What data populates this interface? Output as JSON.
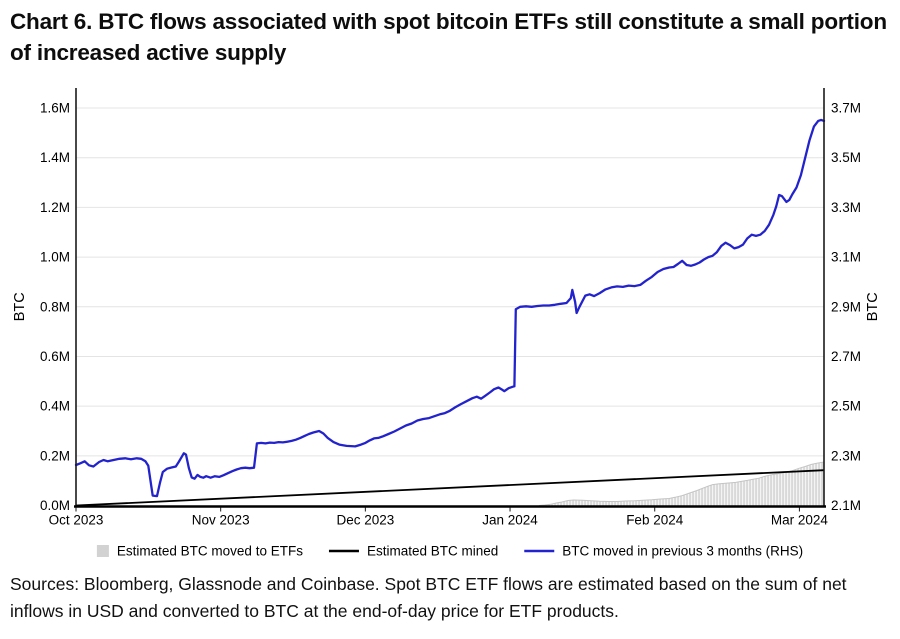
{
  "page": {
    "background": "#ffffff"
  },
  "title": {
    "text": "Chart 6. BTC flows associated with spot bitcoin ETFs still constitute a small portion of increased active supply"
  },
  "sources": {
    "text": "Sources: Bloomberg, Glassnode and Coinbase. Spot BTC ETF flows are estimated based on the sum of net inflows in USD and converted to BTC at the end-of-day price for ETF products."
  },
  "chart_data": {
    "type": "line",
    "grid": true,
    "x_axis": {
      "unit": "months since Oct 1 2023",
      "range": [
        0,
        5.17
      ],
      "ticks": [
        {
          "label": "Oct 2023",
          "value": 0
        },
        {
          "label": "Nov 2023",
          "value": 1
        },
        {
          "label": "Dec 2023",
          "value": 2
        },
        {
          "label": "Jan 2024",
          "value": 3
        },
        {
          "label": "Feb 2024",
          "value": 4
        },
        {
          "label": "Mar 2024",
          "value": 5
        }
      ]
    },
    "left_axis": {
      "title": "BTC",
      "range": [
        0,
        1.6
      ],
      "ticks": [
        {
          "label": "0.0M",
          "value": 0.0
        },
        {
          "label": "0.2M",
          "value": 0.2
        },
        {
          "label": "0.4M",
          "value": 0.4
        },
        {
          "label": "0.6M",
          "value": 0.6
        },
        {
          "label": "0.8M",
          "value": 0.8
        },
        {
          "label": "1.0M",
          "value": 1.0
        },
        {
          "label": "1.2M",
          "value": 1.2
        },
        {
          "label": "1.4M",
          "value": 1.4
        },
        {
          "label": "1.6M",
          "value": 1.6
        }
      ]
    },
    "right_axis": {
      "title": "BTC",
      "range": [
        2.1,
        3.7
      ],
      "ticks": [
        {
          "label": "2.1M",
          "value": 2.1
        },
        {
          "label": "2.3M",
          "value": 2.3
        },
        {
          "label": "2.5M",
          "value": 2.5
        },
        {
          "label": "2.7M",
          "value": 2.7
        },
        {
          "label": "2.9M",
          "value": 2.9
        },
        {
          "label": "3.1M",
          "value": 3.1
        },
        {
          "label": "3.3M",
          "value": 3.3
        },
        {
          "label": "3.5M",
          "value": 3.5
        },
        {
          "label": "3.7M",
          "value": 3.7
        }
      ]
    },
    "colors": {
      "blue": "#2323cd",
      "black": "#000000",
      "gray_fill": "#d9d9d9",
      "gray_edge": "#c4c4c4",
      "grid": "#e4e4e4",
      "spine": "#1a1a1a"
    },
    "legend": [
      {
        "swatch": "square",
        "color": "#d2d2d2",
        "label": "Estimated BTC moved to ETFs"
      },
      {
        "swatch": "line",
        "color": "#000000",
        "label": "Estimated BTC mined"
      },
      {
        "swatch": "line",
        "color": "#2323cd",
        "label": "BTC moved in previous 3 months (RHS)"
      }
    ],
    "series": [
      {
        "name": "Estimated BTC moved to ETFs",
        "type": "area_bars",
        "axis": "left",
        "points": [
          [
            0,
            0
          ],
          [
            3.2,
            0
          ],
          [
            3.24,
            0.002
          ],
          [
            3.28,
            0.005
          ],
          [
            3.32,
            0.01
          ],
          [
            3.36,
            0.014
          ],
          [
            3.4,
            0.02
          ],
          [
            3.44,
            0.022
          ],
          [
            3.5,
            0.021
          ],
          [
            3.56,
            0.019
          ],
          [
            3.62,
            0.017
          ],
          [
            3.68,
            0.016
          ],
          [
            3.74,
            0.016
          ],
          [
            3.8,
            0.018
          ],
          [
            3.86,
            0.019
          ],
          [
            3.92,
            0.021
          ],
          [
            3.98,
            0.023
          ],
          [
            4.04,
            0.026
          ],
          [
            4.1,
            0.028
          ],
          [
            4.14,
            0.033
          ],
          [
            4.19,
            0.04
          ],
          [
            4.24,
            0.05
          ],
          [
            4.29,
            0.06
          ],
          [
            4.33,
            0.069
          ],
          [
            4.37,
            0.078
          ],
          [
            4.4,
            0.084
          ],
          [
            4.44,
            0.087
          ],
          [
            4.48,
            0.089
          ],
          [
            4.52,
            0.091
          ],
          [
            4.56,
            0.093
          ],
          [
            4.6,
            0.097
          ],
          [
            4.64,
            0.101
          ],
          [
            4.68,
            0.106
          ],
          [
            4.72,
            0.11
          ],
          [
            4.76,
            0.117
          ],
          [
            4.81,
            0.124
          ],
          [
            4.86,
            0.129
          ],
          [
            4.91,
            0.134
          ],
          [
            4.95,
            0.14
          ],
          [
            5.0,
            0.15
          ],
          [
            5.04,
            0.157
          ],
          [
            5.08,
            0.165
          ],
          [
            5.12,
            0.17
          ],
          [
            5.15,
            0.173
          ],
          [
            5.17,
            0.175
          ]
        ]
      },
      {
        "name": "Estimated BTC mined",
        "type": "line",
        "axis": "left",
        "points": [
          [
            0,
            0
          ],
          [
            5.17,
            0.142
          ]
        ]
      },
      {
        "name": "BTC moved in previous 3 months (RHS)",
        "type": "line",
        "axis": "right",
        "points": [
          [
            0,
            2.263
          ],
          [
            0.03,
            2.27
          ],
          [
            0.06,
            2.278
          ],
          [
            0.09,
            2.262
          ],
          [
            0.12,
            2.257
          ],
          [
            0.16,
            2.275
          ],
          [
            0.19,
            2.283
          ],
          [
            0.22,
            2.278
          ],
          [
            0.26,
            2.283
          ],
          [
            0.3,
            2.288
          ],
          [
            0.34,
            2.29
          ],
          [
            0.38,
            2.286
          ],
          [
            0.42,
            2.29
          ],
          [
            0.45,
            2.288
          ],
          [
            0.48,
            2.278
          ],
          [
            0.5,
            2.26
          ],
          [
            0.52,
            2.18
          ],
          [
            0.53,
            2.14
          ],
          [
            0.56,
            2.138
          ],
          [
            0.58,
            2.19
          ],
          [
            0.6,
            2.235
          ],
          [
            0.63,
            2.248
          ],
          [
            0.66,
            2.253
          ],
          [
            0.69,
            2.257
          ],
          [
            0.71,
            2.275
          ],
          [
            0.73,
            2.295
          ],
          [
            0.745,
            2.31
          ],
          [
            0.76,
            2.305
          ],
          [
            0.78,
            2.25
          ],
          [
            0.8,
            2.213
          ],
          [
            0.82,
            2.208
          ],
          [
            0.84,
            2.223
          ],
          [
            0.86,
            2.215
          ],
          [
            0.88,
            2.212
          ],
          [
            0.9,
            2.218
          ],
          [
            0.93,
            2.212
          ],
          [
            0.96,
            2.218
          ],
          [
            0.99,
            2.215
          ],
          [
            1.02,
            2.222
          ],
          [
            1.05,
            2.23
          ],
          [
            1.08,
            2.238
          ],
          [
            1.11,
            2.245
          ],
          [
            1.14,
            2.25
          ],
          [
            1.17,
            2.252
          ],
          [
            1.2,
            2.25
          ],
          [
            1.23,
            2.252
          ],
          [
            1.25,
            2.35
          ],
          [
            1.28,
            2.352
          ],
          [
            1.31,
            2.35
          ],
          [
            1.34,
            2.353
          ],
          [
            1.37,
            2.352
          ],
          [
            1.4,
            2.355
          ],
          [
            1.43,
            2.354
          ],
          [
            1.46,
            2.357
          ],
          [
            1.49,
            2.36
          ],
          [
            1.52,
            2.365
          ],
          [
            1.55,
            2.372
          ],
          [
            1.58,
            2.38
          ],
          [
            1.61,
            2.388
          ],
          [
            1.64,
            2.394
          ],
          [
            1.68,
            2.4
          ],
          [
            1.71,
            2.39
          ],
          [
            1.74,
            2.372
          ],
          [
            1.78,
            2.355
          ],
          [
            1.82,
            2.345
          ],
          [
            1.87,
            2.34
          ],
          [
            1.93,
            2.338
          ],
          [
            1.97,
            2.345
          ],
          [
            2.0,
            2.352
          ],
          [
            2.03,
            2.362
          ],
          [
            2.06,
            2.37
          ],
          [
            2.09,
            2.372
          ],
          [
            2.12,
            2.378
          ],
          [
            2.16,
            2.388
          ],
          [
            2.2,
            2.398
          ],
          [
            2.24,
            2.41
          ],
          [
            2.28,
            2.422
          ],
          [
            2.32,
            2.43
          ],
          [
            2.36,
            2.442
          ],
          [
            2.4,
            2.448
          ],
          [
            2.44,
            2.452
          ],
          [
            2.48,
            2.46
          ],
          [
            2.52,
            2.468
          ],
          [
            2.55,
            2.472
          ],
          [
            2.58,
            2.48
          ],
          [
            2.62,
            2.495
          ],
          [
            2.66,
            2.508
          ],
          [
            2.7,
            2.52
          ],
          [
            2.74,
            2.532
          ],
          [
            2.77,
            2.538
          ],
          [
            2.8,
            2.53
          ],
          [
            2.83,
            2.542
          ],
          [
            2.86,
            2.555
          ],
          [
            2.89,
            2.568
          ],
          [
            2.92,
            2.575
          ],
          [
            2.94,
            2.568
          ],
          [
            2.96,
            2.56
          ],
          [
            2.99,
            2.572
          ],
          [
            3.02,
            2.578
          ],
          [
            3.03,
            2.58
          ],
          [
            3.04,
            2.89
          ],
          [
            3.07,
            2.9
          ],
          [
            3.11,
            2.902
          ],
          [
            3.15,
            2.9
          ],
          [
            3.19,
            2.903
          ],
          [
            3.23,
            2.905
          ],
          [
            3.27,
            2.905
          ],
          [
            3.31,
            2.908
          ],
          [
            3.35,
            2.912
          ],
          [
            3.39,
            2.915
          ],
          [
            3.42,
            2.935
          ],
          [
            3.43,
            2.968
          ],
          [
            3.45,
            2.92
          ],
          [
            3.46,
            2.875
          ],
          [
            3.48,
            2.9
          ],
          [
            3.52,
            2.945
          ],
          [
            3.55,
            2.95
          ],
          [
            3.58,
            2.943
          ],
          [
            3.62,
            2.955
          ],
          [
            3.66,
            2.97
          ],
          [
            3.7,
            2.978
          ],
          [
            3.74,
            2.982
          ],
          [
            3.78,
            2.98
          ],
          [
            3.82,
            2.985
          ],
          [
            3.86,
            2.983
          ],
          [
            3.9,
            2.988
          ],
          [
            3.94,
            3.005
          ],
          [
            3.98,
            3.02
          ],
          [
            4.02,
            3.04
          ],
          [
            4.06,
            3.052
          ],
          [
            4.1,
            3.058
          ],
          [
            4.13,
            3.06
          ],
          [
            4.16,
            3.072
          ],
          [
            4.19,
            3.085
          ],
          [
            4.22,
            3.068
          ],
          [
            4.25,
            3.065
          ],
          [
            4.28,
            3.07
          ],
          [
            4.31,
            3.078
          ],
          [
            4.34,
            3.09
          ],
          [
            4.37,
            3.1
          ],
          [
            4.4,
            3.105
          ],
          [
            4.43,
            3.12
          ],
          [
            4.46,
            3.145
          ],
          [
            4.49,
            3.158
          ],
          [
            4.52,
            3.148
          ],
          [
            4.55,
            3.135
          ],
          [
            4.58,
            3.14
          ],
          [
            4.61,
            3.15
          ],
          [
            4.64,
            3.175
          ],
          [
            4.67,
            3.19
          ],
          [
            4.7,
            3.185
          ],
          [
            4.73,
            3.19
          ],
          [
            4.76,
            3.205
          ],
          [
            4.79,
            3.23
          ],
          [
            4.82,
            3.27
          ],
          [
            4.84,
            3.305
          ],
          [
            4.86,
            3.35
          ],
          [
            4.88,
            3.345
          ],
          [
            4.91,
            3.322
          ],
          [
            4.93,
            3.33
          ],
          [
            4.95,
            3.352
          ],
          [
            4.98,
            3.38
          ],
          [
            5.01,
            3.43
          ],
          [
            5.04,
            3.5
          ],
          [
            5.07,
            3.57
          ],
          [
            5.1,
            3.625
          ],
          [
            5.13,
            3.648
          ],
          [
            5.15,
            3.652
          ],
          [
            5.17,
            3.648
          ]
        ]
      }
    ]
  }
}
